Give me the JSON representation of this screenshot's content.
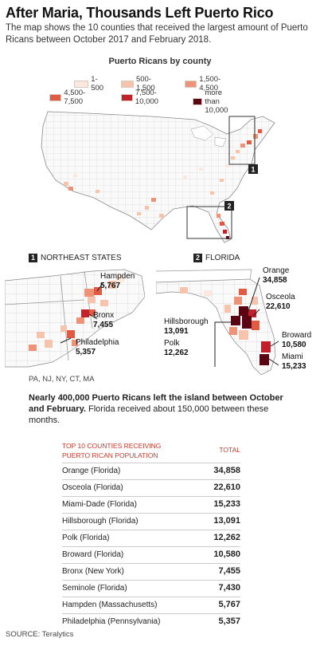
{
  "header": {
    "title": "After Maria, Thousands Left Puerto Rico",
    "subtitle": "The map shows the 10 counties that received the largest amount of Puerto Ricans between October 2017 and February 2018."
  },
  "legend": {
    "title": "Puerto Ricans by county",
    "items": [
      {
        "label": "1-500",
        "color": "#fbe8df"
      },
      {
        "label": "500-1,500",
        "color": "#f6c3ad"
      },
      {
        "label": "1,500-4,500",
        "color": "#ee9278"
      },
      {
        "label": "4,500-7,500",
        "color": "#e05a44"
      },
      {
        "label": "7,500-10,000",
        "color": "#c2202a"
      },
      {
        "label": "more than 10,000",
        "color": "#5c0512"
      }
    ]
  },
  "insets": {
    "northeast": {
      "number": "1",
      "label": "NORTHEAST STATES",
      "states": "PA, NJ, NY, CT, MA"
    },
    "florida": {
      "number": "2",
      "label": "FLORIDA"
    }
  },
  "callouts": {
    "hampden": {
      "name": "Hampden",
      "value": "5,767"
    },
    "bronx": {
      "name": "Bronx",
      "value": "7,455"
    },
    "philadelphia": {
      "name": "Philadelphia",
      "value": "5,357"
    },
    "orange": {
      "name": "Orange",
      "value": "34,858"
    },
    "osceola": {
      "name": "Osceola",
      "value": "22,610"
    },
    "hillsborough": {
      "name": "Hillsborough",
      "value": "13,091"
    },
    "polk": {
      "name": "Polk",
      "value": "12,262"
    },
    "broward": {
      "name": "Broward",
      "value": "10,580"
    },
    "miami": {
      "name": "Miami",
      "value": "15,233"
    }
  },
  "note": {
    "bold": "Nearly 400,000 Puerto Ricans left the island between October and February.",
    "rest": " Florida received about 150,000 between these months."
  },
  "table": {
    "header_left": "TOP 10 COUNTIES RECEIVING PUERTO RICAN POPULATION",
    "header_right": "TOTAL",
    "rows": [
      {
        "county": "Orange (Florida)",
        "total": "34,858"
      },
      {
        "county": "Osceola (Florida)",
        "total": "22,610"
      },
      {
        "county": "Miami-Dade (Florida)",
        "total": "15,233"
      },
      {
        "county": "Hillsborough (Florida)",
        "total": "13,091"
      },
      {
        "county": "Polk (Florida)",
        "total": "12,262"
      },
      {
        "county": "Broward (Florida)",
        "total": "10,580"
      },
      {
        "county": "Bronx (New York)",
        "total": "7,455"
      },
      {
        "county": "Seminole (Florida)",
        "total": "7,430"
      },
      {
        "county": "Hampden (Massachusetts)",
        "total": "5,767"
      },
      {
        "county": "Philadelphia (Pennsylvania)",
        "total": "5,357"
      }
    ]
  },
  "source": "SOURCE: Teralytics"
}
